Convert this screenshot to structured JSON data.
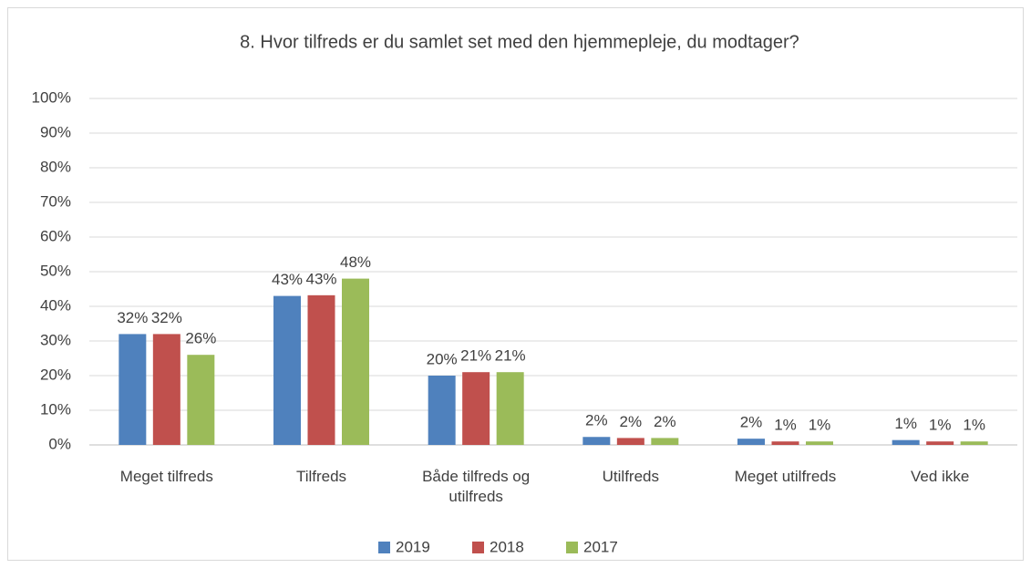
{
  "chart_data": {
    "type": "bar",
    "title": "8. Hvor tilfreds er du samlet set med den hjemmepleje, du modtager?",
    "categories": [
      "Meget tilfreds",
      "Tilfreds",
      "Både tilfreds og utilfreds",
      "Utilfreds",
      "Meget utilfreds",
      "Ved ikke"
    ],
    "series": [
      {
        "name": "2019",
        "color": "#4f81bd",
        "values": [
          32,
          43,
          20,
          2.3,
          1.8,
          1.4
        ],
        "value_labels": [
          "32%",
          "43%",
          "20%",
          "2%",
          "2%",
          "1%"
        ]
      },
      {
        "name": "2018",
        "color": "#c0504d",
        "values": [
          32,
          43.2,
          21,
          2,
          1,
          1
        ],
        "value_labels": [
          "32%",
          "43%",
          "21%",
          "2%",
          "1%",
          "1%"
        ]
      },
      {
        "name": "2017",
        "color": "#9bbb59",
        "values": [
          26,
          48,
          21,
          2,
          1,
          1
        ],
        "value_labels": [
          "26%",
          "48%",
          "21%",
          "2%",
          "1%",
          "1%"
        ]
      }
    ],
    "ylim": [
      0,
      100
    ],
    "yticks": [
      {
        "value": 0,
        "label": "0%"
      },
      {
        "value": 10,
        "label": "10%"
      },
      {
        "value": 20,
        "label": "20%"
      },
      {
        "value": 30,
        "label": "30%"
      },
      {
        "value": 40,
        "label": "40%"
      },
      {
        "value": 50,
        "label": "50%"
      },
      {
        "value": 60,
        "label": "60%"
      },
      {
        "value": 70,
        "label": "70%"
      },
      {
        "value": 80,
        "label": "80%"
      },
      {
        "value": 90,
        "label": "90%"
      },
      {
        "value": 100,
        "label": "100%"
      }
    ],
    "grid": true,
    "legend": "bottom"
  }
}
